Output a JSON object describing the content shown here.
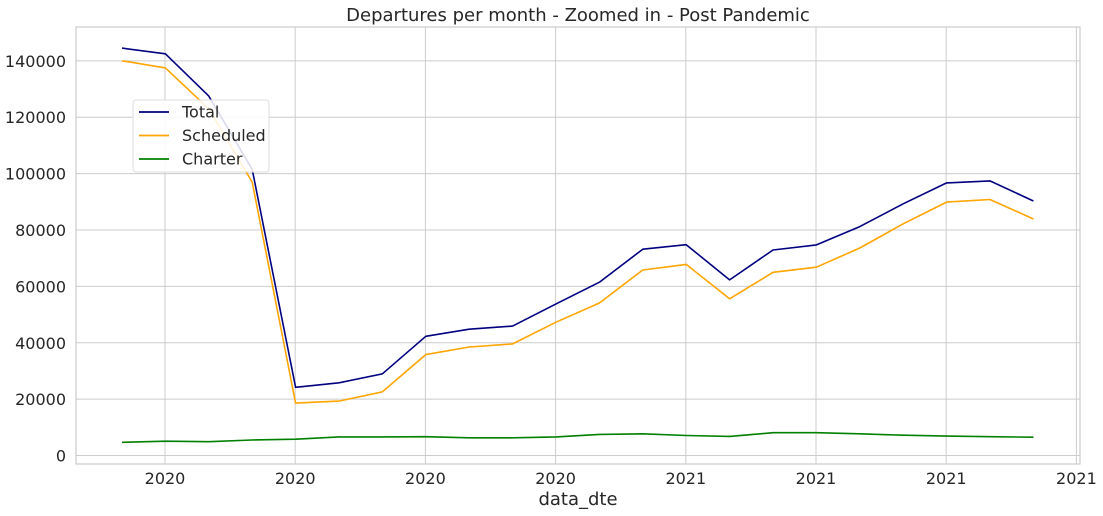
{
  "chart_data": {
    "type": "line",
    "title": "Departures per month - Zoomed in - Post Pandemic",
    "xlabel": "data_dte",
    "ylabel": "",
    "x_tick_labels": [
      "2020",
      "2020",
      "2020",
      "2020",
      "2021",
      "2021",
      "2021",
      "2021"
    ],
    "y_ticks": [
      0,
      20000,
      40000,
      60000,
      80000,
      100000,
      120000,
      140000
    ],
    "ylim": [
      -3000,
      152000
    ],
    "x": [
      "2020-01",
      "2020-02",
      "2020-03",
      "2020-04",
      "2020-05",
      "2020-06",
      "2020-07",
      "2020-08",
      "2020-09",
      "2020-10",
      "2020-11",
      "2020-12",
      "2021-01",
      "2021-02",
      "2021-03",
      "2021-04",
      "2021-05",
      "2021-06",
      "2021-07",
      "2021-08",
      "2021-09",
      "2021-10",
      "2021-11"
    ],
    "grid": true,
    "legend_position": "upper-left",
    "series": [
      {
        "name": "Total",
        "color": "#000080",
        "values": [
          144500,
          142500,
          127500,
          101500,
          24200,
          25800,
          29000,
          42300,
          44800,
          45900,
          53800,
          61500,
          73200,
          74800,
          62300,
          72900,
          74700,
          81200,
          89300,
          96700,
          97400,
          90300,
          null
        ]
      },
      {
        "name": "Scheduled",
        "color": "#ffa500",
        "values": [
          140000,
          137500,
          123000,
          97000,
          18600,
          19300,
          22600,
          35800,
          38500,
          39600,
          47300,
          54100,
          65800,
          67800,
          55600,
          65000,
          66800,
          73600,
          82200,
          89900,
          90800,
          83900,
          null
        ]
      },
      {
        "name": "Charter",
        "color": "#008000",
        "values": [
          4700,
          5100,
          4900,
          5500,
          5800,
          6600,
          6600,
          6700,
          6300,
          6300,
          6600,
          7500,
          7700,
          7100,
          6800,
          8100,
          8100,
          7700,
          7200,
          6900,
          6700,
          6500,
          null
        ]
      }
    ]
  }
}
